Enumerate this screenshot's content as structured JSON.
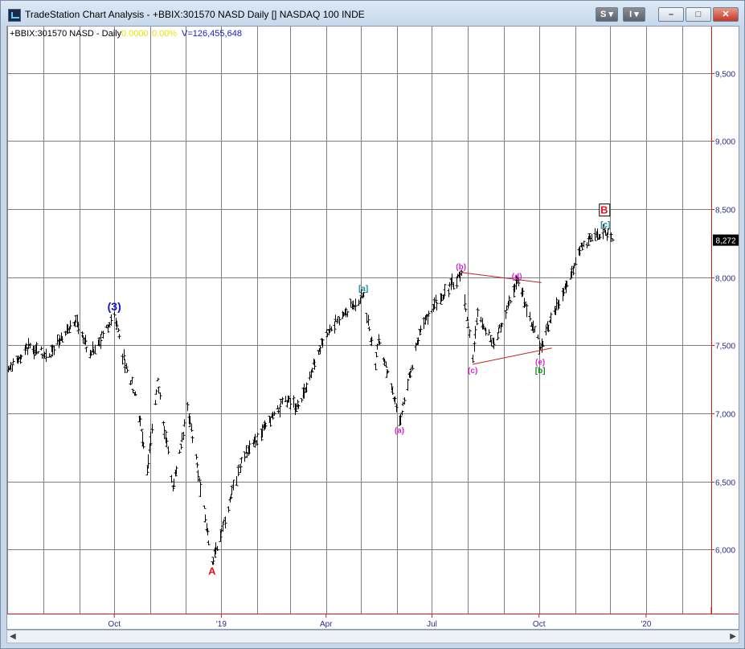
{
  "window": {
    "title": "TradeStation Chart Analysis - +BBIX:301570 NASD Daily [] NASDAQ 100 INDE",
    "btn_s": "S",
    "btn_i": "I",
    "minimize": "–",
    "maximize": "□",
    "close": "✕"
  },
  "header": {
    "symbol": "+BBIX:301570 NASD - Daily",
    "change": "0.0000",
    "pct": "0.00%",
    "volume": "V=126,455,648"
  },
  "colors": {
    "wave_red": "#e8141c",
    "wave_blue": "#1014c8",
    "wave_teal": "#1a8a9a",
    "wave_magenta": "#d22ad2",
    "wave_green": "#1a8a1a",
    "trendline": "#c81e1e",
    "grid": "#7f7f7f",
    "axis": "#c81e1e"
  },
  "chart_data": {
    "type": "ohlc",
    "x_ticks": [
      "Oct",
      "'19",
      "Apr",
      "Jul",
      "Oct",
      "'20"
    ],
    "y_ticks": [
      "6,000",
      "6,500",
      "7,000",
      "7,500",
      "8,000",
      "8,500",
      "9,000",
      "9,500"
    ],
    "y_range": [
      5530,
      9840
    ],
    "last_price": 8272,
    "last_price_label": "8,272",
    "pivots": [
      {
        "date": "2018-07-02",
        "price": 7320
      },
      {
        "date": "2018-07-20",
        "price": 7500
      },
      {
        "date": "2018-08-06",
        "price": 7420
      },
      {
        "date": "2018-08-29",
        "price": 7700
      },
      {
        "date": "2018-09-10",
        "price": 7430
      },
      {
        "date": "2018-10-01",
        "price": 7720
      },
      {
        "date": "2018-10-10",
        "price": 7350
      },
      {
        "date": "2018-10-19",
        "price": 7150
      },
      {
        "date": "2018-10-29",
        "price": 6580
      },
      {
        "date": "2018-11-07",
        "price": 7250
      },
      {
        "date": "2018-11-20",
        "price": 6450
      },
      {
        "date": "2018-12-03",
        "price": 7050
      },
      {
        "date": "2018-12-24",
        "price": 5900
      },
      {
        "date": "2019-01-18",
        "price": 6650
      },
      {
        "date": "2019-02-25",
        "price": 7100
      },
      {
        "date": "2019-03-08",
        "price": 7050
      },
      {
        "date": "2019-04-01",
        "price": 7600
      },
      {
        "date": "2019-05-03",
        "price": 7870
      },
      {
        "date": "2019-05-13",
        "price": 7350
      },
      {
        "date": "2019-05-16",
        "price": 7550
      },
      {
        "date": "2019-06-03",
        "price": 6940
      },
      {
        "date": "2019-06-20",
        "price": 7600
      },
      {
        "date": "2019-07-03",
        "price": 7800
      },
      {
        "date": "2019-07-26",
        "price": 8030
      },
      {
        "date": "2019-08-05",
        "price": 7400
      },
      {
        "date": "2019-08-09",
        "price": 7750
      },
      {
        "date": "2019-08-23",
        "price": 7500
      },
      {
        "date": "2019-09-12",
        "price": 7980
      },
      {
        "date": "2019-10-02",
        "price": 7480
      },
      {
        "date": "2019-10-10",
        "price": 7680
      },
      {
        "date": "2019-10-25",
        "price": 7950
      },
      {
        "date": "2019-11-08",
        "price": 8250
      },
      {
        "date": "2019-11-27",
        "price": 8330
      },
      {
        "date": "2019-12-03",
        "price": 8272
      }
    ],
    "wave_labels": [
      {
        "text": "(3)",
        "date": "2018-10-01",
        "price": 7780,
        "color": "blue"
      },
      {
        "text": "A",
        "date": "2018-12-24",
        "price": 5840,
        "color": "red"
      },
      {
        "text": "[a]",
        "date": "2019-05-03",
        "price": 7920,
        "color": "teal"
      },
      {
        "text": "(a)",
        "date": "2019-06-03",
        "price": 6880,
        "color": "magenta"
      },
      {
        "text": "(b)",
        "date": "2019-07-26",
        "price": 8080,
        "color": "magenta"
      },
      {
        "text": "(c)",
        "date": "2019-08-05",
        "price": 7320,
        "color": "magenta"
      },
      {
        "text": "(d)",
        "date": "2019-09-12",
        "price": 8010,
        "color": "magenta"
      },
      {
        "text": "(e)",
        "date": "2019-10-02",
        "price": 7380,
        "color": "magenta"
      },
      {
        "text": "[b]",
        "date": "2019-10-02",
        "price": 7320,
        "color": "green"
      },
      {
        "text": "[c]",
        "date": "2019-11-27",
        "price": 8390,
        "color": "teal"
      },
      {
        "text": "B",
        "date": "2019-11-26",
        "price": 8490,
        "color": "red"
      }
    ],
    "trendlines": [
      {
        "from": {
          "date": "2019-07-26",
          "price": 8035
        },
        "to": {
          "date": "2019-10-03",
          "price": 7960
        }
      },
      {
        "from": {
          "date": "2019-08-05",
          "price": 7360
        },
        "to": {
          "date": "2019-10-12",
          "price": 7480
        }
      }
    ]
  }
}
